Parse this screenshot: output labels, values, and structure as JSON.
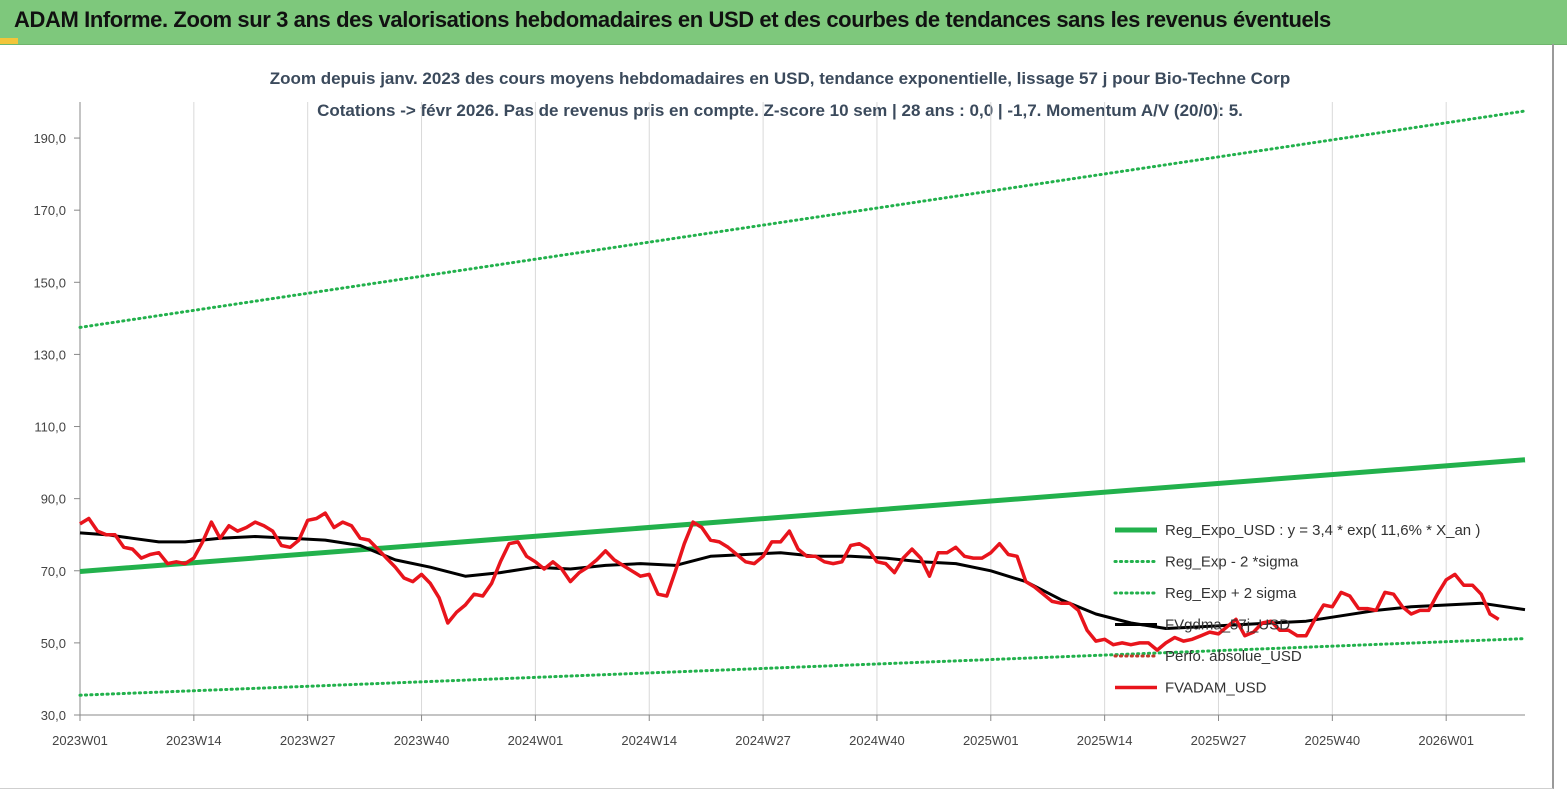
{
  "header": {
    "title": "ADAM Informe. Zoom sur 3 ans des valorisations hebdomadaires en USD et des courbes de tendances sans les revenus éventuels"
  },
  "colors": {
    "header_bg": "#7ec87c",
    "reg_expo": "#22b14c",
    "sigma_bands": "#22b14c",
    "fvgdma": "#000000",
    "perfo": "#c0392b",
    "fvadam": "#e8141c"
  },
  "chart_data": {
    "type": "line",
    "title_line1": "Zoom depuis janv. 2023 des cours moyens hebdomadaires en USD, tendance exponentielle, lissage 57 j pour Bio-Techne Corp",
    "title_line2": "Cotations -> févr 2026. Pas de revenus pris en compte. Z-score 10 sem | 28 ans : 0,0 | -1,7. Momentum A/V (20/0): 5.",
    "ylim": [
      30,
      200
    ],
    "yticks": [
      "30,0",
      "50,0",
      "70,0",
      "90,0",
      "110,0",
      "130,0",
      "150,0",
      "170,0",
      "190,0"
    ],
    "ytick_values": [
      30,
      50,
      70,
      90,
      110,
      130,
      150,
      170,
      190
    ],
    "xtick_labels": [
      "2023W01",
      "2023W14",
      "2023W27",
      "2023W40",
      "2024W01",
      "2024W14",
      "2024W27",
      "2024W40",
      "2025W01",
      "2025W14",
      "2025W27",
      "2025W40",
      "2026W01"
    ],
    "xtick_index": [
      0,
      13,
      26,
      39,
      52,
      65,
      78,
      91,
      104,
      117,
      130,
      143,
      156
    ],
    "n_weeks": 166,
    "grid": "vertical",
    "legend_position": "right",
    "series": [
      {
        "name": "Reg_Expo_USD : y = 3,4 * exp( 11,6% *  X_an )",
        "style": "thick",
        "points": [
          [
            0,
            69.8
          ],
          [
            165,
            100.8
          ]
        ]
      },
      {
        "name": "Reg_Exp - 2 *sigma",
        "style": "dotted",
        "points": [
          [
            0,
            35.5
          ],
          [
            165,
            51.2
          ]
        ]
      },
      {
        "name": "Reg_Exp + 2 sigma",
        "style": "dotted",
        "points": [
          [
            0,
            137.5
          ],
          [
            165,
            197.5
          ]
        ]
      },
      {
        "name": "FVgdma_57j_USD",
        "style": "black",
        "points": [
          [
            0,
            80.5
          ],
          [
            3,
            80
          ],
          [
            6,
            79
          ],
          [
            9,
            78
          ],
          [
            12,
            78
          ],
          [
            16,
            79
          ],
          [
            20,
            79.5
          ],
          [
            24,
            79
          ],
          [
            28,
            78.5
          ],
          [
            32,
            77
          ],
          [
            36,
            73
          ],
          [
            40,
            71
          ],
          [
            44,
            68.5
          ],
          [
            48,
            69.5
          ],
          [
            52,
            71
          ],
          [
            56,
            70.5
          ],
          [
            60,
            71.5
          ],
          [
            64,
            72
          ],
          [
            68,
            71.5
          ],
          [
            72,
            74
          ],
          [
            76,
            74.5
          ],
          [
            80,
            75
          ],
          [
            84,
            74
          ],
          [
            88,
            74
          ],
          [
            92,
            73.5
          ],
          [
            96,
            72.5
          ],
          [
            100,
            72
          ],
          [
            104,
            70
          ],
          [
            108,
            67
          ],
          [
            112,
            62
          ],
          [
            116,
            58
          ],
          [
            120,
            55.5
          ],
          [
            124,
            54
          ],
          [
            128,
            54.5
          ],
          [
            132,
            55
          ],
          [
            136,
            55.5
          ],
          [
            140,
            56
          ],
          [
            144,
            57.5
          ],
          [
            148,
            59
          ],
          [
            152,
            60
          ],
          [
            156,
            60.5
          ],
          [
            160,
            61
          ],
          [
            165,
            59.2
          ]
        ]
      },
      {
        "name": "Perfo. absolue_USD",
        "style": "dotted-red",
        "points": []
      },
      {
        "name": "FVADAM_USD",
        "style": "red",
        "points": [
          [
            0,
            83
          ],
          [
            1,
            84.5
          ],
          [
            2,
            81
          ],
          [
            3,
            80
          ],
          [
            4,
            80
          ],
          [
            5,
            76.5
          ],
          [
            6,
            76
          ],
          [
            7,
            73.5
          ],
          [
            8,
            74.5
          ],
          [
            9,
            75
          ],
          [
            10,
            72
          ],
          [
            11,
            72.5
          ],
          [
            12,
            72
          ],
          [
            13,
            73.5
          ],
          [
            14,
            78
          ],
          [
            15,
            83.5
          ],
          [
            16,
            79
          ],
          [
            17,
            82.5
          ],
          [
            18,
            81
          ],
          [
            19,
            82
          ],
          [
            20,
            83.5
          ],
          [
            21,
            82.5
          ],
          [
            22,
            81
          ],
          [
            23,
            77
          ],
          [
            24,
            76.5
          ],
          [
            25,
            78.5
          ],
          [
            26,
            84
          ],
          [
            27,
            84.5
          ],
          [
            28,
            86
          ],
          [
            29,
            82
          ],
          [
            30,
            83.5
          ],
          [
            31,
            82.5
          ],
          [
            32,
            79
          ],
          [
            33,
            78.5
          ],
          [
            34,
            76
          ],
          [
            35,
            73.5
          ],
          [
            36,
            71
          ],
          [
            37,
            68
          ],
          [
            38,
            67
          ],
          [
            39,
            69
          ],
          [
            40,
            66.5
          ],
          [
            41,
            62.5
          ],
          [
            42,
            55.5
          ],
          [
            43,
            58.5
          ],
          [
            44,
            60.5
          ],
          [
            45,
            63.5
          ],
          [
            46,
            63
          ],
          [
            47,
            66.5
          ],
          [
            48,
            72.5
          ],
          [
            49,
            77.5
          ],
          [
            50,
            78
          ],
          [
            51,
            74
          ],
          [
            52,
            72.5
          ],
          [
            53,
            70.5
          ],
          [
            54,
            72.5
          ],
          [
            55,
            70.5
          ],
          [
            56,
            67
          ],
          [
            57,
            69.5
          ],
          [
            58,
            71
          ],
          [
            59,
            73
          ],
          [
            60,
            75.5
          ],
          [
            61,
            73
          ],
          [
            62,
            71.5
          ],
          [
            63,
            70
          ],
          [
            64,
            68.5
          ],
          [
            65,
            69
          ],
          [
            66,
            63.5
          ],
          [
            67,
            63
          ],
          [
            68,
            70
          ],
          [
            69,
            77.5
          ],
          [
            70,
            83.5
          ],
          [
            71,
            82
          ],
          [
            72,
            78.5
          ],
          [
            73,
            78
          ],
          [
            74,
            76.5
          ],
          [
            75,
            74.5
          ],
          [
            76,
            72.5
          ],
          [
            77,
            72
          ],
          [
            78,
            74
          ],
          [
            79,
            78
          ],
          [
            80,
            78
          ],
          [
            81,
            81
          ],
          [
            82,
            76
          ],
          [
            83,
            74
          ],
          [
            84,
            74
          ],
          [
            85,
            72.5
          ],
          [
            86,
            72
          ],
          [
            87,
            72.5
          ],
          [
            88,
            77
          ],
          [
            89,
            77.5
          ],
          [
            90,
            76
          ],
          [
            91,
            72.5
          ],
          [
            92,
            72
          ],
          [
            93,
            69.5
          ],
          [
            94,
            73.5
          ],
          [
            95,
            76
          ],
          [
            96,
            73.5
          ],
          [
            97,
            68.5
          ],
          [
            98,
            75
          ],
          [
            99,
            75
          ],
          [
            100,
            76.5
          ],
          [
            101,
            74
          ],
          [
            102,
            73.5
          ],
          [
            103,
            73.5
          ],
          [
            104,
            75
          ],
          [
            105,
            77.5
          ],
          [
            106,
            74.5
          ],
          [
            107,
            74
          ],
          [
            108,
            67
          ],
          [
            109,
            65.5
          ],
          [
            110,
            63.5
          ],
          [
            111,
            61.5
          ],
          [
            112,
            61
          ],
          [
            113,
            61
          ],
          [
            114,
            59
          ],
          [
            115,
            53.5
          ],
          [
            116,
            50.5
          ],
          [
            117,
            51
          ],
          [
            118,
            49.5
          ],
          [
            119,
            50
          ],
          [
            120,
            49.5
          ],
          [
            121,
            50
          ],
          [
            122,
            50
          ],
          [
            123,
            48
          ],
          [
            124,
            50
          ],
          [
            125,
            51.5
          ],
          [
            126,
            50.5
          ],
          [
            127,
            51
          ],
          [
            128,
            52
          ],
          [
            129,
            53
          ],
          [
            130,
            52.5
          ],
          [
            131,
            54.5
          ],
          [
            132,
            56.5
          ],
          [
            133,
            52
          ],
          [
            134,
            53
          ],
          [
            135,
            55.5
          ],
          [
            136,
            56
          ],
          [
            137,
            53.5
          ],
          [
            138,
            53.5
          ],
          [
            139,
            52
          ],
          [
            140,
            52
          ],
          [
            141,
            56.5
          ],
          [
            142,
            60.5
          ],
          [
            143,
            60
          ],
          [
            144,
            64
          ],
          [
            145,
            63
          ],
          [
            146,
            59.5
          ],
          [
            147,
            59.5
          ],
          [
            148,
            59
          ],
          [
            149,
            64
          ],
          [
            150,
            63.5
          ],
          [
            151,
            60
          ],
          [
            152,
            58
          ],
          [
            153,
            59
          ],
          [
            154,
            59
          ],
          [
            155,
            63.5
          ],
          [
            156,
            67.5
          ],
          [
            157,
            69
          ],
          [
            158,
            66
          ],
          [
            159,
            66
          ],
          [
            160,
            63.5
          ],
          [
            161,
            58
          ],
          [
            162,
            56.5
          ]
        ]
      }
    ]
  }
}
